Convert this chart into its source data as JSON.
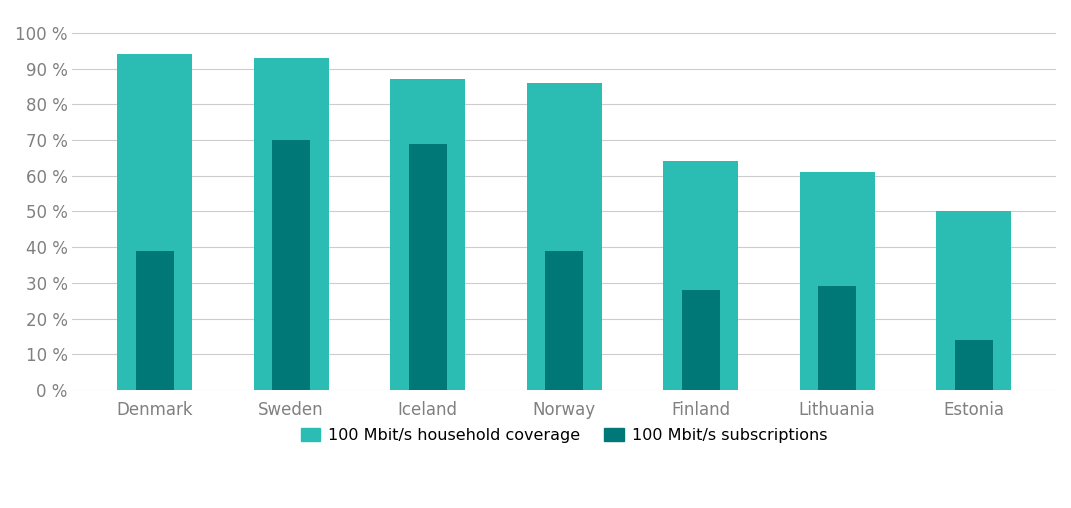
{
  "categories": [
    "Denmark",
    "Sweden",
    "Iceland",
    "Norway",
    "Finland",
    "Lithuania",
    "Estonia"
  ],
  "coverage": [
    94,
    93,
    87,
    86,
    64,
    61,
    50
  ],
  "subscriptions": [
    39,
    70,
    69,
    39,
    28,
    29,
    14
  ],
  "coverage_color": "#2bbcb4",
  "subscriptions_color": "#007878",
  "background_color": "#ffffff",
  "grid_color": "#cccccc",
  "tick_color": "#808080",
  "yticks": [
    0,
    10,
    20,
    30,
    40,
    50,
    60,
    70,
    80,
    90,
    100
  ],
  "ylim": [
    0,
    105
  ],
  "coverage_bar_width": 0.55,
  "subscriptions_bar_width": 0.28,
  "legend_coverage": "100 Mbit/s household coverage",
  "legend_subscriptions": "100 Mbit/s subscriptions",
  "figsize": [
    10.71,
    5.08
  ],
  "dpi": 100
}
